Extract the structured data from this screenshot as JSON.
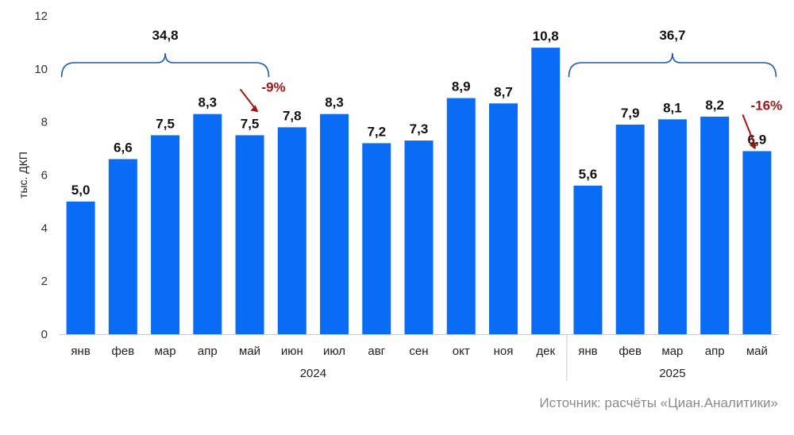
{
  "chart_data": {
    "type": "bar",
    "ylabel": "тыс. ДКП",
    "ylim": [
      0,
      12
    ],
    "yticks": [
      0,
      2,
      4,
      6,
      8,
      10,
      12
    ],
    "grid": false,
    "bar_color": "#0a6cf5",
    "categories": [
      "янв",
      "фев",
      "мар",
      "апр",
      "май",
      "июн",
      "июл",
      "авг",
      "сен",
      "окт",
      "ноя",
      "дек",
      "янв",
      "фев",
      "мар",
      "апр",
      "май"
    ],
    "values": [
      5.0,
      6.6,
      7.5,
      8.3,
      7.5,
      7.8,
      8.3,
      7.2,
      7.3,
      8.9,
      8.7,
      10.8,
      5.6,
      7.9,
      8.1,
      8.2,
      6.9
    ],
    "value_labels": [
      "5,0",
      "6,6",
      "7,5",
      "8,3",
      "7,5",
      "7,8",
      "8,3",
      "7,2",
      "7,3",
      "8,9",
      "8,7",
      "10,8",
      "5,6",
      "7,9",
      "8,1",
      "8,2",
      "6,9"
    ],
    "groups": [
      {
        "label": "2024",
        "start": 0,
        "end": 11
      },
      {
        "label": "2025",
        "start": 12,
        "end": 16
      }
    ],
    "annotations": [
      {
        "type": "brace",
        "start": 0,
        "end": 4,
        "text": "34,8"
      },
      {
        "type": "brace",
        "start": 12,
        "end": 16,
        "text": "36,7"
      },
      {
        "type": "change",
        "index": 4,
        "text": "-9%",
        "color": "#a31515"
      },
      {
        "type": "change",
        "index": 16,
        "text": "-16%",
        "color": "#a31515"
      }
    ]
  },
  "source": "Источник: расчёты «Циан.Аналитики»"
}
